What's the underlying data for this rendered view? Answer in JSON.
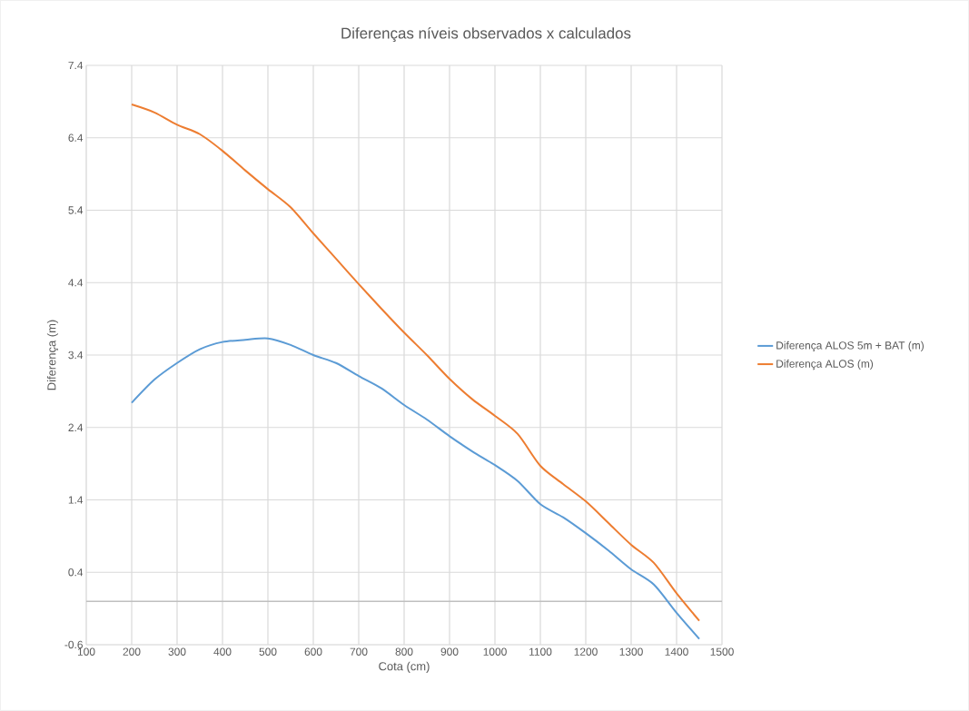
{
  "chart_data": {
    "type": "line",
    "title": "Diferenças níveis observados x calculados",
    "xlabel": "Cota (cm)",
    "ylabel": "Diferença (m)",
    "x": [
      200,
      250,
      300,
      350,
      400,
      450,
      500,
      550,
      600,
      650,
      700,
      750,
      800,
      850,
      900,
      950,
      1000,
      1050,
      1100,
      1150,
      1200,
      1250,
      1300,
      1350,
      1400,
      1450
    ],
    "series": [
      {
        "name": "Diferença ALOS 5m + BAT (m)",
        "color": "#5b9bd5",
        "values": [
          2.74,
          3.06,
          3.29,
          3.48,
          3.58,
          3.61,
          3.63,
          3.54,
          3.4,
          3.29,
          3.11,
          2.94,
          2.71,
          2.51,
          2.28,
          2.07,
          1.88,
          1.66,
          1.34,
          1.16,
          0.94,
          0.7,
          0.44,
          0.23,
          -0.16,
          -0.52
        ]
      },
      {
        "name": "Diferença ALOS (m)",
        "color": "#ed7d31",
        "values": [
          6.86,
          6.75,
          6.58,
          6.45,
          6.22,
          5.95,
          5.69,
          5.44,
          5.08,
          4.73,
          4.38,
          4.04,
          3.71,
          3.4,
          3.07,
          2.79,
          2.56,
          2.31,
          1.87,
          1.62,
          1.38,
          1.08,
          0.78,
          0.53,
          0.11,
          -0.27
        ]
      }
    ],
    "xlim": [
      100,
      1500
    ],
    "xticks": [
      100,
      200,
      300,
      400,
      500,
      600,
      700,
      800,
      900,
      1000,
      1100,
      1200,
      1300,
      1400,
      1500
    ],
    "ylim": [
      -0.6,
      7.4
    ],
    "yticks": [
      -0.6,
      0.4,
      1.4,
      2.4,
      3.4,
      4.4,
      5.4,
      6.4,
      7.4
    ],
    "ref_lines": [
      {
        "axis": "y",
        "value": 0,
        "color": "#bfbfbf"
      }
    ],
    "grid": true,
    "legend": "right",
    "marker": "none",
    "line_style": "solid"
  }
}
